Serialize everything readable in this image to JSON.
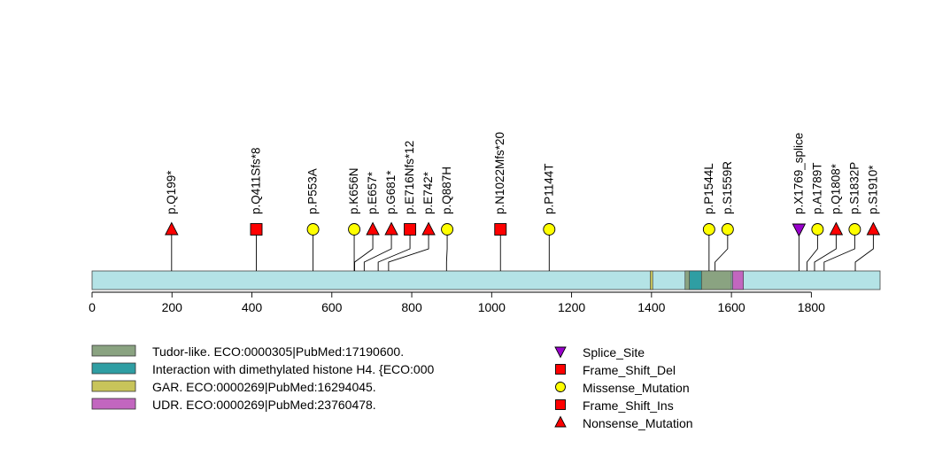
{
  "chart_data": {
    "type": "lollipop",
    "protein_length": 1972,
    "xlim": [
      0,
      1972
    ],
    "x_ticks": [
      0,
      200,
      400,
      600,
      800,
      1000,
      1200,
      1400,
      1600,
      1800
    ],
    "colors": {
      "backbone": "#b4e3e6",
      "stem": "#000000",
      "red": "#ff0000",
      "yellow": "#ffff00",
      "purple": "#9900cc"
    },
    "domains": [
      {
        "name": "Tudor-like",
        "label": "Tudor-like. ECO:0000305|PubMed:17190600.",
        "start": 1484,
        "end": 1600,
        "color": "#8aa381"
      },
      {
        "name": "Interaction",
        "label": "Interaction with dimethylated histone H4. {ECO:000",
        "start": 1495,
        "end": 1525,
        "color": "#2f9ea3"
      },
      {
        "name": "GAR",
        "label": "GAR. ECO:0000269|PubMed:16294045.",
        "start": 1397,
        "end": 1403,
        "color": "#c8c45a"
      },
      {
        "name": "UDR",
        "label": "UDR. ECO:0000269|PubMed:23760478.",
        "start": 1603,
        "end": 1630,
        "color": "#c266bf"
      }
    ],
    "mutations": [
      {
        "label": "p.Q199*",
        "pos": 199,
        "type": "Nonsense_Mutation",
        "shape": "triangle",
        "color": "#ff0000"
      },
      {
        "label": "p.Q411Sfs*8",
        "pos": 411,
        "type": "Frame_Shift_Del",
        "shape": "square",
        "color": "#ff0000"
      },
      {
        "label": "p.P553A",
        "pos": 553,
        "type": "Missense_Mutation",
        "shape": "circle",
        "color": "#ffff00"
      },
      {
        "label": "p.K656N",
        "pos": 656,
        "type": "Missense_Mutation",
        "shape": "circle",
        "color": "#ffff00"
      },
      {
        "label": "p.E657*",
        "pos": 657,
        "type": "Nonsense_Mutation",
        "shape": "triangle",
        "color": "#ff0000"
      },
      {
        "label": "p.G681*",
        "pos": 681,
        "type": "Nonsense_Mutation",
        "shape": "triangle",
        "color": "#ff0000"
      },
      {
        "label": "p.E716Nfs*12",
        "pos": 716,
        "type": "Frame_Shift_Ins",
        "shape": "square",
        "color": "#ff0000"
      },
      {
        "label": "p.E742*",
        "pos": 742,
        "type": "Nonsense_Mutation",
        "shape": "triangle",
        "color": "#ff0000"
      },
      {
        "label": "p.Q887H",
        "pos": 887,
        "type": "Missense_Mutation",
        "shape": "circle",
        "color": "#ffff00"
      },
      {
        "label": "p.N1022Mfs*20",
        "pos": 1022,
        "type": "Frame_Shift_Del",
        "shape": "square",
        "color": "#ff0000"
      },
      {
        "label": "p.P1144T",
        "pos": 1144,
        "type": "Missense_Mutation",
        "shape": "circle",
        "color": "#ffff00"
      },
      {
        "label": "p.P1544L",
        "pos": 1544,
        "type": "Missense_Mutation",
        "shape": "circle",
        "color": "#ffff00"
      },
      {
        "label": "p.S1559R",
        "pos": 1559,
        "type": "Missense_Mutation",
        "shape": "circle",
        "color": "#ffff00"
      },
      {
        "label": "p.X1769_splice",
        "pos": 1769,
        "type": "Splice_Site",
        "shape": "down-triangle",
        "color": "#9900cc"
      },
      {
        "label": "p.A1789T",
        "pos": 1789,
        "type": "Missense_Mutation",
        "shape": "circle",
        "color": "#ffff00"
      },
      {
        "label": "p.Q1808*",
        "pos": 1808,
        "type": "Nonsense_Mutation",
        "shape": "triangle",
        "color": "#ff0000"
      },
      {
        "label": "p.S1832P",
        "pos": 1832,
        "type": "Missense_Mutation",
        "shape": "circle",
        "color": "#ffff00"
      },
      {
        "label": "p.S1910*",
        "pos": 1910,
        "type": "Nonsense_Mutation",
        "shape": "triangle",
        "color": "#ff0000"
      }
    ],
    "legend_domains": [
      {
        "label": "Tudor-like. ECO:0000305|PubMed:17190600.",
        "color": "#8aa381"
      },
      {
        "label": "Interaction with dimethylated histone H4. {ECO:000",
        "color": "#2f9ea3"
      },
      {
        "label": "GAR. ECO:0000269|PubMed:16294045.",
        "color": "#c8c45a"
      },
      {
        "label": "UDR. ECO:0000269|PubMed:23760478.",
        "color": "#c266bf"
      }
    ],
    "legend_mutations": [
      {
        "label": "Splice_Site",
        "shape": "down-triangle",
        "color": "#9900cc"
      },
      {
        "label": "Frame_Shift_Del",
        "shape": "square",
        "color": "#ff0000"
      },
      {
        "label": "Missense_Mutation",
        "shape": "circle",
        "color": "#ffff00"
      },
      {
        "label": "Frame_Shift_Ins",
        "shape": "square",
        "color": "#ff0000"
      },
      {
        "label": "Nonsense_Mutation",
        "shape": "triangle",
        "color": "#ff0000"
      }
    ]
  }
}
